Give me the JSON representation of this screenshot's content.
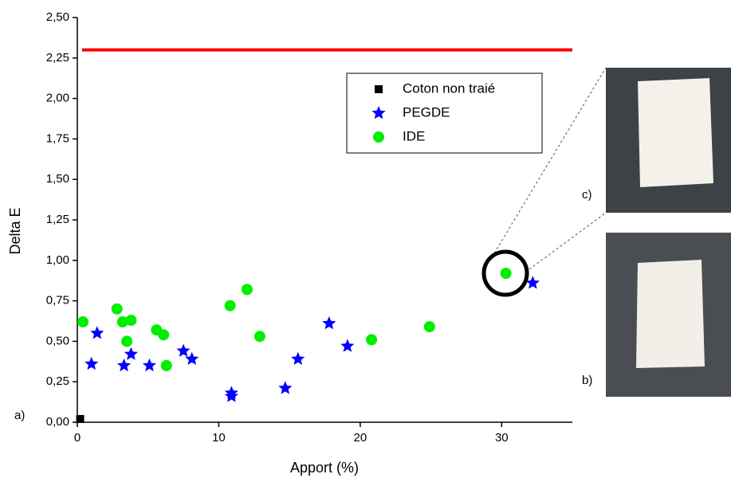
{
  "chart_data": {
    "type": "scatter",
    "x_label": "Apport (%)",
    "y_label": "Delta E",
    "xlim": [
      0,
      35
    ],
    "ylim": [
      0,
      2.5
    ],
    "xticks": [
      0,
      10,
      20,
      30
    ],
    "yticks": [
      {
        "value": 0,
        "label": "0,00"
      },
      {
        "value": 0.25,
        "label": "0,25"
      },
      {
        "value": 0.5,
        "label": "0,50"
      },
      {
        "value": 0.75,
        "label": "0,75"
      },
      {
        "value": 1,
        "label": "1,00"
      },
      {
        "value": 1.25,
        "label": "1,25"
      },
      {
        "value": 1.5,
        "label": "1,50"
      },
      {
        "value": 1.75,
        "label": "1,75"
      },
      {
        "value": 2,
        "label": "2,00"
      },
      {
        "value": 2.25,
        "label": "2,25"
      },
      {
        "value": 2.5,
        "label": "2,50"
      }
    ],
    "reference_line": {
      "value": 2.3,
      "color": "#ff0000"
    },
    "series": [
      {
        "name": "Coton non traié",
        "color": "#000000",
        "marker": "square",
        "x": [
          0.2
        ],
        "values": [
          0.02
        ]
      },
      {
        "name": "PEGDE",
        "color": "#0000ff",
        "marker": "star",
        "x": [
          1.0,
          1.4,
          3.3,
          3.8,
          5.1,
          7.5,
          8.1,
          10.9,
          10.9,
          14.7,
          15.6,
          17.8,
          19.1,
          32.2
        ],
        "values": [
          0.36,
          0.55,
          0.35,
          0.42,
          0.35,
          0.44,
          0.39,
          0.18,
          0.16,
          0.21,
          0.39,
          0.61,
          0.47,
          0.86
        ]
      },
      {
        "name": "IDE",
        "color": "#00ee00",
        "marker": "circle",
        "x": [
          0.4,
          2.8,
          3.2,
          3.5,
          3.8,
          5.6,
          6.1,
          6.3,
          10.8,
          12.0,
          12.9,
          20.8,
          24.9,
          30.3
        ],
        "values": [
          0.62,
          0.7,
          0.62,
          0.5,
          0.63,
          0.57,
          0.54,
          0.35,
          0.72,
          0.82,
          0.53,
          0.51,
          0.59,
          0.92
        ]
      }
    ],
    "annotations": [
      "a)",
      "b)",
      "c)"
    ]
  }
}
